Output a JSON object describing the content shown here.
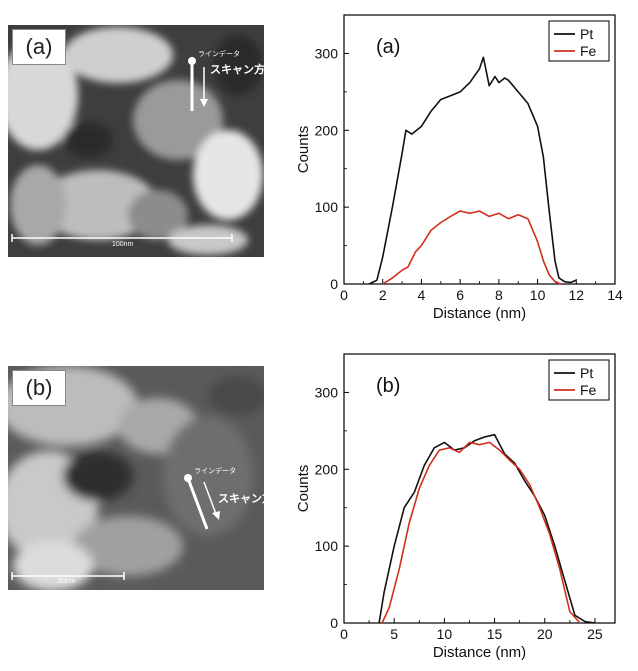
{
  "panels": [
    {
      "id": "a",
      "image": {
        "label": "(a)",
        "line_data_label": "ラインデータ",
        "scan_label": "スキャン方向",
        "scale_text": "100nm"
      },
      "colors": {
        "Pt": "#111111",
        "Fe": "#d0301c"
      }
    },
    {
      "id": "b",
      "image": {
        "label": "(b)",
        "line_data_label": "ラインデータ",
        "scan_label": "スキャン方向",
        "scale_text": "50nm"
      },
      "colors": {
        "Pt": "#111111",
        "Fe": "#d0301c"
      }
    }
  ],
  "chart_data": [
    {
      "type": "line",
      "panel_label": "(a)",
      "xlabel": "Distance (nm)",
      "ylabel": "Counts",
      "xlim": [
        0,
        14
      ],
      "ylim": [
        0,
        350
      ],
      "xticks": [
        "0",
        "2",
        "4",
        "6",
        "8",
        "10",
        "12",
        "14"
      ],
      "yticks": [
        "0",
        "100",
        "200",
        "300"
      ],
      "legend_position": "top-right",
      "series": [
        {
          "name": "Pt",
          "color": "#111111",
          "x": [
            1.3,
            1.7,
            2.0,
            2.5,
            3.0,
            3.2,
            3.5,
            4.0,
            4.5,
            5.0,
            5.5,
            6.0,
            6.5,
            7.0,
            7.2,
            7.5,
            7.8,
            8.0,
            8.3,
            8.5,
            9.0,
            9.5,
            10.0,
            10.3,
            10.6,
            10.9,
            11.1,
            11.4,
            11.7,
            12.0
          ],
          "y": [
            0,
            5,
            35,
            100,
            170,
            200,
            195,
            205,
            225,
            240,
            245,
            250,
            262,
            280,
            295,
            258,
            270,
            262,
            268,
            265,
            250,
            235,
            205,
            165,
            95,
            30,
            8,
            3,
            2,
            5
          ]
        },
        {
          "name": "Fe",
          "color": "#d0301c",
          "x": [
            2.0,
            2.5,
            3.0,
            3.3,
            3.7,
            4.0,
            4.5,
            5.0,
            5.5,
            6.0,
            6.5,
            7.0,
            7.5,
            8.0,
            8.5,
            9.0,
            9.5,
            10.0,
            10.3,
            10.6,
            10.9,
            11.2
          ],
          "y": [
            0,
            8,
            18,
            22,
            42,
            50,
            70,
            80,
            88,
            95,
            92,
            95,
            88,
            92,
            85,
            90,
            85,
            55,
            30,
            12,
            3,
            0
          ]
        }
      ]
    },
    {
      "type": "line",
      "panel_label": "(b)",
      "xlabel": "Distance (nm)",
      "ylabel": "Counts",
      "xlim": [
        0,
        27
      ],
      "ylim": [
        0,
        350
      ],
      "xticks": [
        "0",
        "5",
        "10",
        "15",
        "20",
        "25"
      ],
      "yticks": [
        "0",
        "100",
        "200",
        "300"
      ],
      "legend_position": "top-right",
      "series": [
        {
          "name": "Pt",
          "color": "#111111",
          "x": [
            3.5,
            4.0,
            5.0,
            6.0,
            7.0,
            8.0,
            9.0,
            10.0,
            11.0,
            12.0,
            13.0,
            14.0,
            15.0,
            16.0,
            17.0,
            18.0,
            19.0,
            20.0,
            21.0,
            22.0,
            23.0,
            24.0,
            25.0
          ],
          "y": [
            0,
            40,
            100,
            150,
            170,
            205,
            228,
            235,
            225,
            228,
            237,
            242,
            245,
            220,
            208,
            185,
            165,
            140,
            100,
            55,
            10,
            2,
            0
          ]
        },
        {
          "name": "Fe",
          "color": "#d0301c",
          "x": [
            3.8,
            4.5,
            5.5,
            6.5,
            7.5,
            8.5,
            9.5,
            10.5,
            11.5,
            12.5,
            13.5,
            14.5,
            15.5,
            16.5,
            17.5,
            18.5,
            19.5,
            20.5,
            21.5,
            22.5,
            23.5
          ],
          "y": [
            0,
            20,
            70,
            130,
            175,
            205,
            225,
            228,
            222,
            235,
            232,
            235,
            225,
            212,
            200,
            180,
            150,
            115,
            70,
            15,
            0
          ]
        }
      ]
    }
  ]
}
